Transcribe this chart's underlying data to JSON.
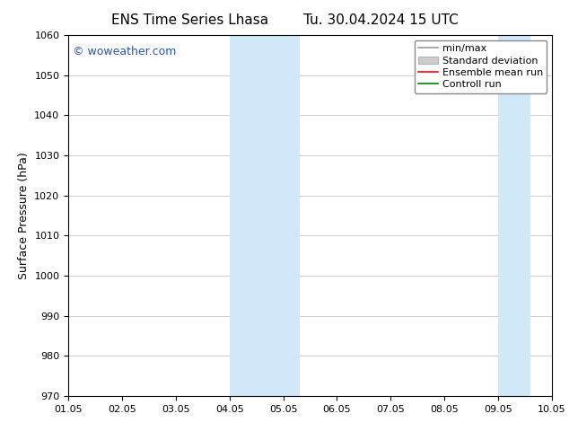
{
  "title_left": "ENS Time Series Lhasa",
  "title_right": "Tu. 30.04.2024 15 UTC",
  "ylabel": "Surface Pressure (hPa)",
  "ylim": [
    970,
    1060
  ],
  "yticks": [
    970,
    980,
    990,
    1000,
    1010,
    1020,
    1030,
    1040,
    1050,
    1060
  ],
  "xlim": [
    0.0,
    9.0
  ],
  "xtick_positions": [
    0,
    1,
    2,
    3,
    4,
    5,
    6,
    7,
    8,
    9
  ],
  "xtick_labels": [
    "01.05",
    "02.05",
    "03.05",
    "04.05",
    "05.05",
    "06.05",
    "07.05",
    "08.05",
    "09.05",
    "10.05"
  ],
  "shaded_bands": [
    {
      "xmin": 3.0,
      "xmax": 3.5,
      "color": "#d0e8f8"
    },
    {
      "xmin": 3.5,
      "xmax": 4.0,
      "color": "#d0e8f8"
    },
    {
      "xmin": 7.5,
      "xmax": 8.0,
      "color": "#d0e8f8"
    },
    {
      "xmin": 8.0,
      "xmax": 8.5,
      "color": "#d0e8f8"
    }
  ],
  "watermark_text": "© woweather.com",
  "watermark_color": "#2255bb",
  "background_color": "#ffffff",
  "legend_items": [
    {
      "label": "min/max",
      "color": "#999999",
      "lw": 1.2,
      "ls": "-",
      "type": "line"
    },
    {
      "label": "Standard deviation",
      "color": "#cccccc",
      "lw": 6,
      "ls": "-",
      "type": "patch"
    },
    {
      "label": "Ensemble mean run",
      "color": "#ff0000",
      "lw": 1.2,
      "ls": "-",
      "type": "line"
    },
    {
      "label": "Controll run",
      "color": "#008000",
      "lw": 1.2,
      "ls": "-",
      "type": "line"
    }
  ],
  "grid_color": "#bbbbbb",
  "spine_color": "#000000",
  "title_fontsize": 11,
  "axis_label_fontsize": 9,
  "tick_fontsize": 8,
  "watermark_fontsize": 9,
  "legend_fontsize": 8,
  "fig_width": 6.34,
  "fig_height": 4.9,
  "dpi": 100
}
